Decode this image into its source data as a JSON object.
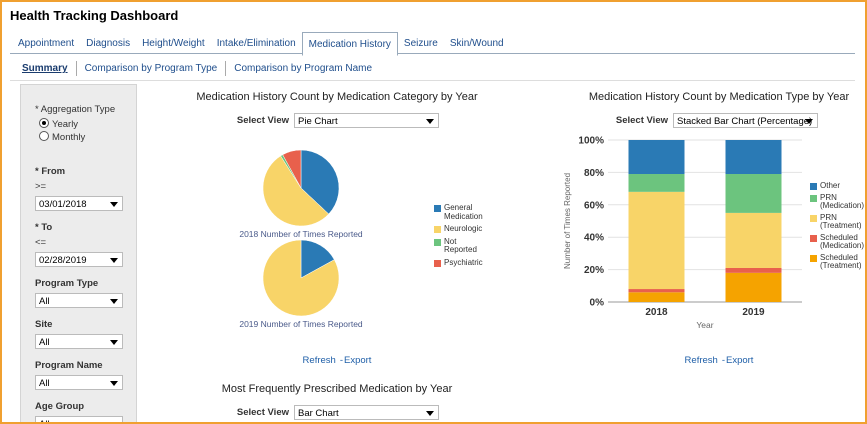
{
  "header": {
    "title": "Health Tracking Dashboard"
  },
  "tabs": {
    "items": [
      "Appointment",
      "Diagnosis",
      "Height/Weight",
      "Intake/Elimination",
      "Medication History",
      "Seizure",
      "Skin/Wound"
    ],
    "selected": 4
  },
  "subtabs": {
    "items": [
      "Summary",
      "Comparison by Program Type",
      "Comparison by Program Name"
    ],
    "selected": 0
  },
  "filters": {
    "aggregation": {
      "label": "* Aggregation Type",
      "options": [
        "Yearly",
        "Monthly"
      ],
      "selected": 0
    },
    "fields": [
      {
        "label": "* From",
        "op": ">=",
        "value": "03/01/2018"
      },
      {
        "label": "* To",
        "op": "<=",
        "value": "02/28/2019"
      },
      {
        "label": "Program Type",
        "value": "All"
      },
      {
        "label": "Site",
        "value": "All"
      },
      {
        "label": "Program Name",
        "value": "All"
      },
      {
        "label": "Age Group",
        "value": "All"
      }
    ]
  },
  "chart_data": [
    {
      "type": "pie",
      "title": "Medication History Count by Medication Category by Year",
      "select_label": "Select View",
      "select_value": "Pie Chart",
      "categories": [
        "General Medication",
        "Neurologic",
        "Not Reported",
        "Psychiatric"
      ],
      "colors": [
        "#2a7ab5",
        "#f8d468",
        "#6cc47e",
        "#e8604c"
      ],
      "pies": [
        {
          "caption": "2018 Number of Times Reported",
          "values": [
            37,
            54,
            1,
            8
          ]
        },
        {
          "caption": "2019 Number of Times Reported",
          "values": [
            17,
            83,
            0,
            0
          ]
        }
      ],
      "links": [
        "Refresh",
        "Export"
      ]
    },
    {
      "type": "stacked_bar",
      "title": "Medication History Count by Medication Type by Year",
      "select_label": "Select View",
      "select_value": "Stacked Bar Chart (Percentage)",
      "y_label": "Number of Times Reported",
      "x_label": "Year",
      "categories": [
        "2018",
        "2019"
      ],
      "series": [
        {
          "name": "Other",
          "color": "#2a7ab5",
          "values": [
            21,
            21
          ]
        },
        {
          "name": "PRN (Medication)",
          "color": "#6cc47e",
          "values": [
            11,
            24
          ]
        },
        {
          "name": "PRN (Treatment)",
          "color": "#f8d468",
          "values": [
            60,
            34
          ]
        },
        {
          "name": "Scheduled (Medication)",
          "color": "#e8604c",
          "values": [
            2,
            3
          ]
        },
        {
          "name": "Scheduled (Treatment)",
          "color": "#f5a300",
          "values": [
            6,
            18
          ]
        }
      ],
      "ylim": [
        0,
        100
      ],
      "yticks": [
        {
          "value": 0,
          "label": "0%"
        },
        {
          "value": 20,
          "label": "20%"
        },
        {
          "value": 40,
          "label": "40%"
        },
        {
          "value": 60,
          "label": "60%"
        },
        {
          "value": 80,
          "label": "80%"
        },
        {
          "value": 100,
          "label": "100%"
        }
      ],
      "grid": true,
      "links": [
        "Refresh",
        "Export"
      ]
    },
    {
      "type": "bar",
      "title": "Most Frequently Prescribed Medication by Year",
      "select_label": "Select View",
      "select_value": "Bar Chart"
    }
  ]
}
